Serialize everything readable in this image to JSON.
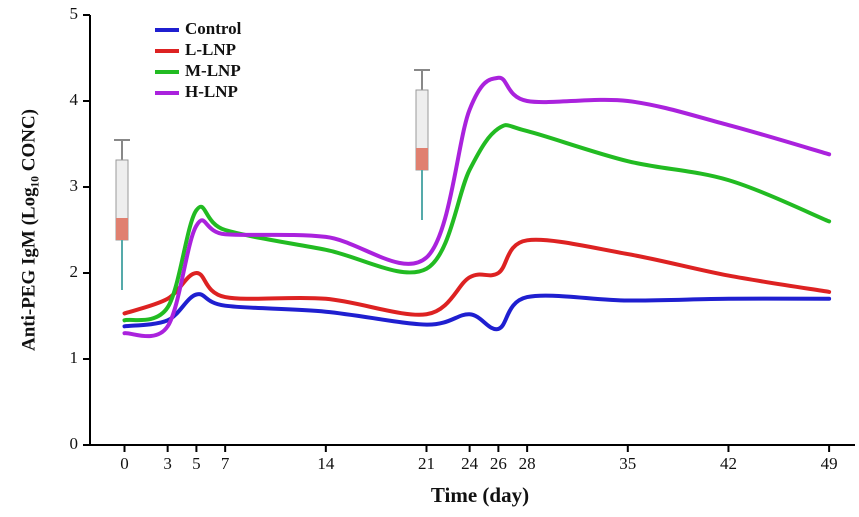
{
  "chart_data": {
    "type": "line",
    "x_label": "Time (day)",
    "y_label": "Anti-PEG IgM (Log₁₀ CONC)",
    "xlim": [
      -2.4,
      50.8
    ],
    "xticks": [
      0,
      3,
      5,
      7,
      14,
      21,
      24,
      26,
      28,
      35,
      42,
      49
    ],
    "ylim": [
      0,
      5
    ],
    "yticks": [
      0,
      1,
      2,
      3,
      4,
      5
    ],
    "legend": "upper left",
    "series": [
      {
        "name": "Control",
        "color": "#1f1fd0",
        "x": [
          0,
          3,
          5,
          7,
          14,
          21,
          24,
          26,
          28,
          35,
          42,
          49
        ],
        "values": [
          1.38,
          1.45,
          1.75,
          1.62,
          1.55,
          1.4,
          1.52,
          1.35,
          1.72,
          1.68,
          1.7,
          1.7
        ]
      },
      {
        "name": "L-LNP",
        "color": "#dd2222",
        "x": [
          0,
          3,
          5,
          7,
          14,
          21,
          24,
          26,
          28,
          35,
          42,
          49
        ],
        "values": [
          1.53,
          1.7,
          2.0,
          1.72,
          1.7,
          1.52,
          1.95,
          2.0,
          2.38,
          2.22,
          1.97,
          1.78
        ]
      },
      {
        "name": "M-LNP",
        "color": "#22bb22",
        "x": [
          0,
          3,
          5,
          7,
          14,
          21,
          24,
          26,
          28,
          35,
          42,
          49
        ],
        "values": [
          1.45,
          1.6,
          2.73,
          2.5,
          2.27,
          2.05,
          3.2,
          3.68,
          3.65,
          3.3,
          3.08,
          2.6
        ]
      },
      {
        "name": "H-LNP",
        "color": "#aa22dd",
        "x": [
          0,
          3,
          5,
          7,
          14,
          21,
          24,
          26,
          28,
          35,
          42,
          49
        ],
        "values": [
          1.3,
          1.38,
          2.55,
          2.45,
          2.42,
          2.18,
          3.9,
          4.27,
          4.0,
          4.0,
          3.72,
          3.38
        ]
      }
    ]
  }
}
